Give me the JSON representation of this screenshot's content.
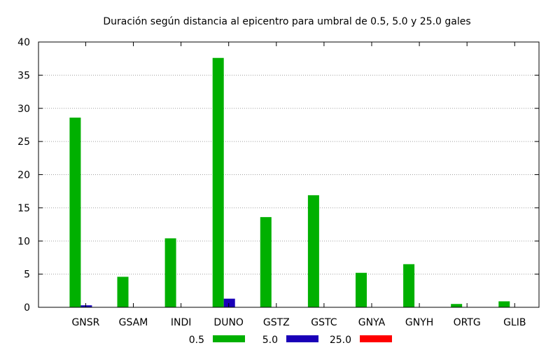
{
  "chart_data": {
    "type": "bar",
    "title": "Duración según distancia al epicentro para umbral de 0.5, 5.0 y 25.0 gales",
    "categories": [
      "GNSR",
      "GSAM",
      "INDI",
      "DUNO",
      "GSTZ",
      "GSTC",
      "GNYA",
      "GNYH",
      "ORTG",
      "GLIB"
    ],
    "series": [
      {
        "name": "0.5",
        "color": "#00b000",
        "values": [
          28.6,
          4.6,
          10.4,
          37.6,
          13.6,
          16.9,
          5.2,
          6.5,
          0.5,
          0.9
        ]
      },
      {
        "name": "5.0",
        "color": "#1a00b8",
        "values": [
          0.3,
          0,
          0,
          1.3,
          0,
          0,
          0,
          0,
          0,
          0
        ]
      },
      {
        "name": "25.0",
        "color": "#ff0000",
        "values": [
          0,
          0,
          0,
          0,
          0,
          0,
          0,
          0,
          0,
          0
        ]
      }
    ],
    "ylim": [
      0,
      40
    ],
    "yticks": [
      0,
      5,
      10,
      15,
      20,
      25,
      30,
      35,
      40
    ],
    "grid": true,
    "legend_position": "bottom"
  }
}
